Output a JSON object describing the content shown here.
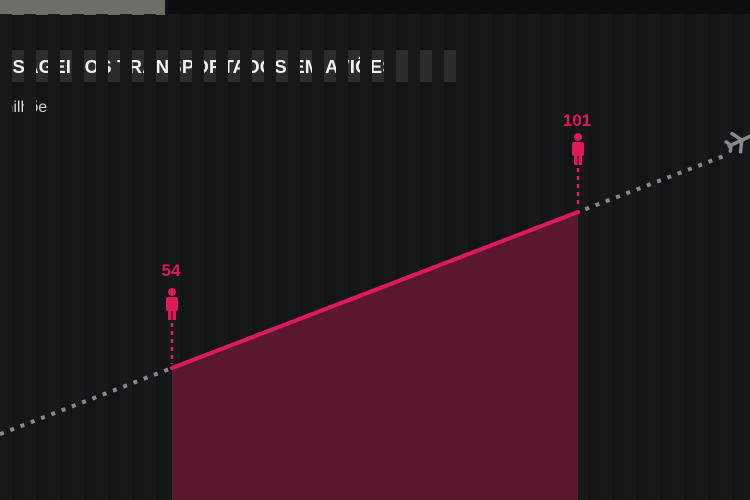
{
  "header": {
    "title": "SSAGEIROS TRANSPORTADOS EM AVIÕES",
    "unit": "milhões"
  },
  "colors": {
    "background": "#121418",
    "accent": "#e0195a",
    "area_fill": "#5a1830",
    "trend_dots": "#8a8a86",
    "title_bar": "#2a2c30"
  },
  "icons": {
    "person": "person-icon",
    "plane": "airplane-icon"
  },
  "chart_data": {
    "type": "area",
    "title": "SSAGEIROS TRANSPORTADOS EM AVIÕES",
    "ylabel": "milhões",
    "xlabel": "",
    "x": [
      0,
      1
    ],
    "values": [
      54,
      101
    ],
    "data_labels": [
      "54",
      "101"
    ],
    "trend": "dotted projection line extending beyond both points",
    "grid": false,
    "legend": "none"
  }
}
